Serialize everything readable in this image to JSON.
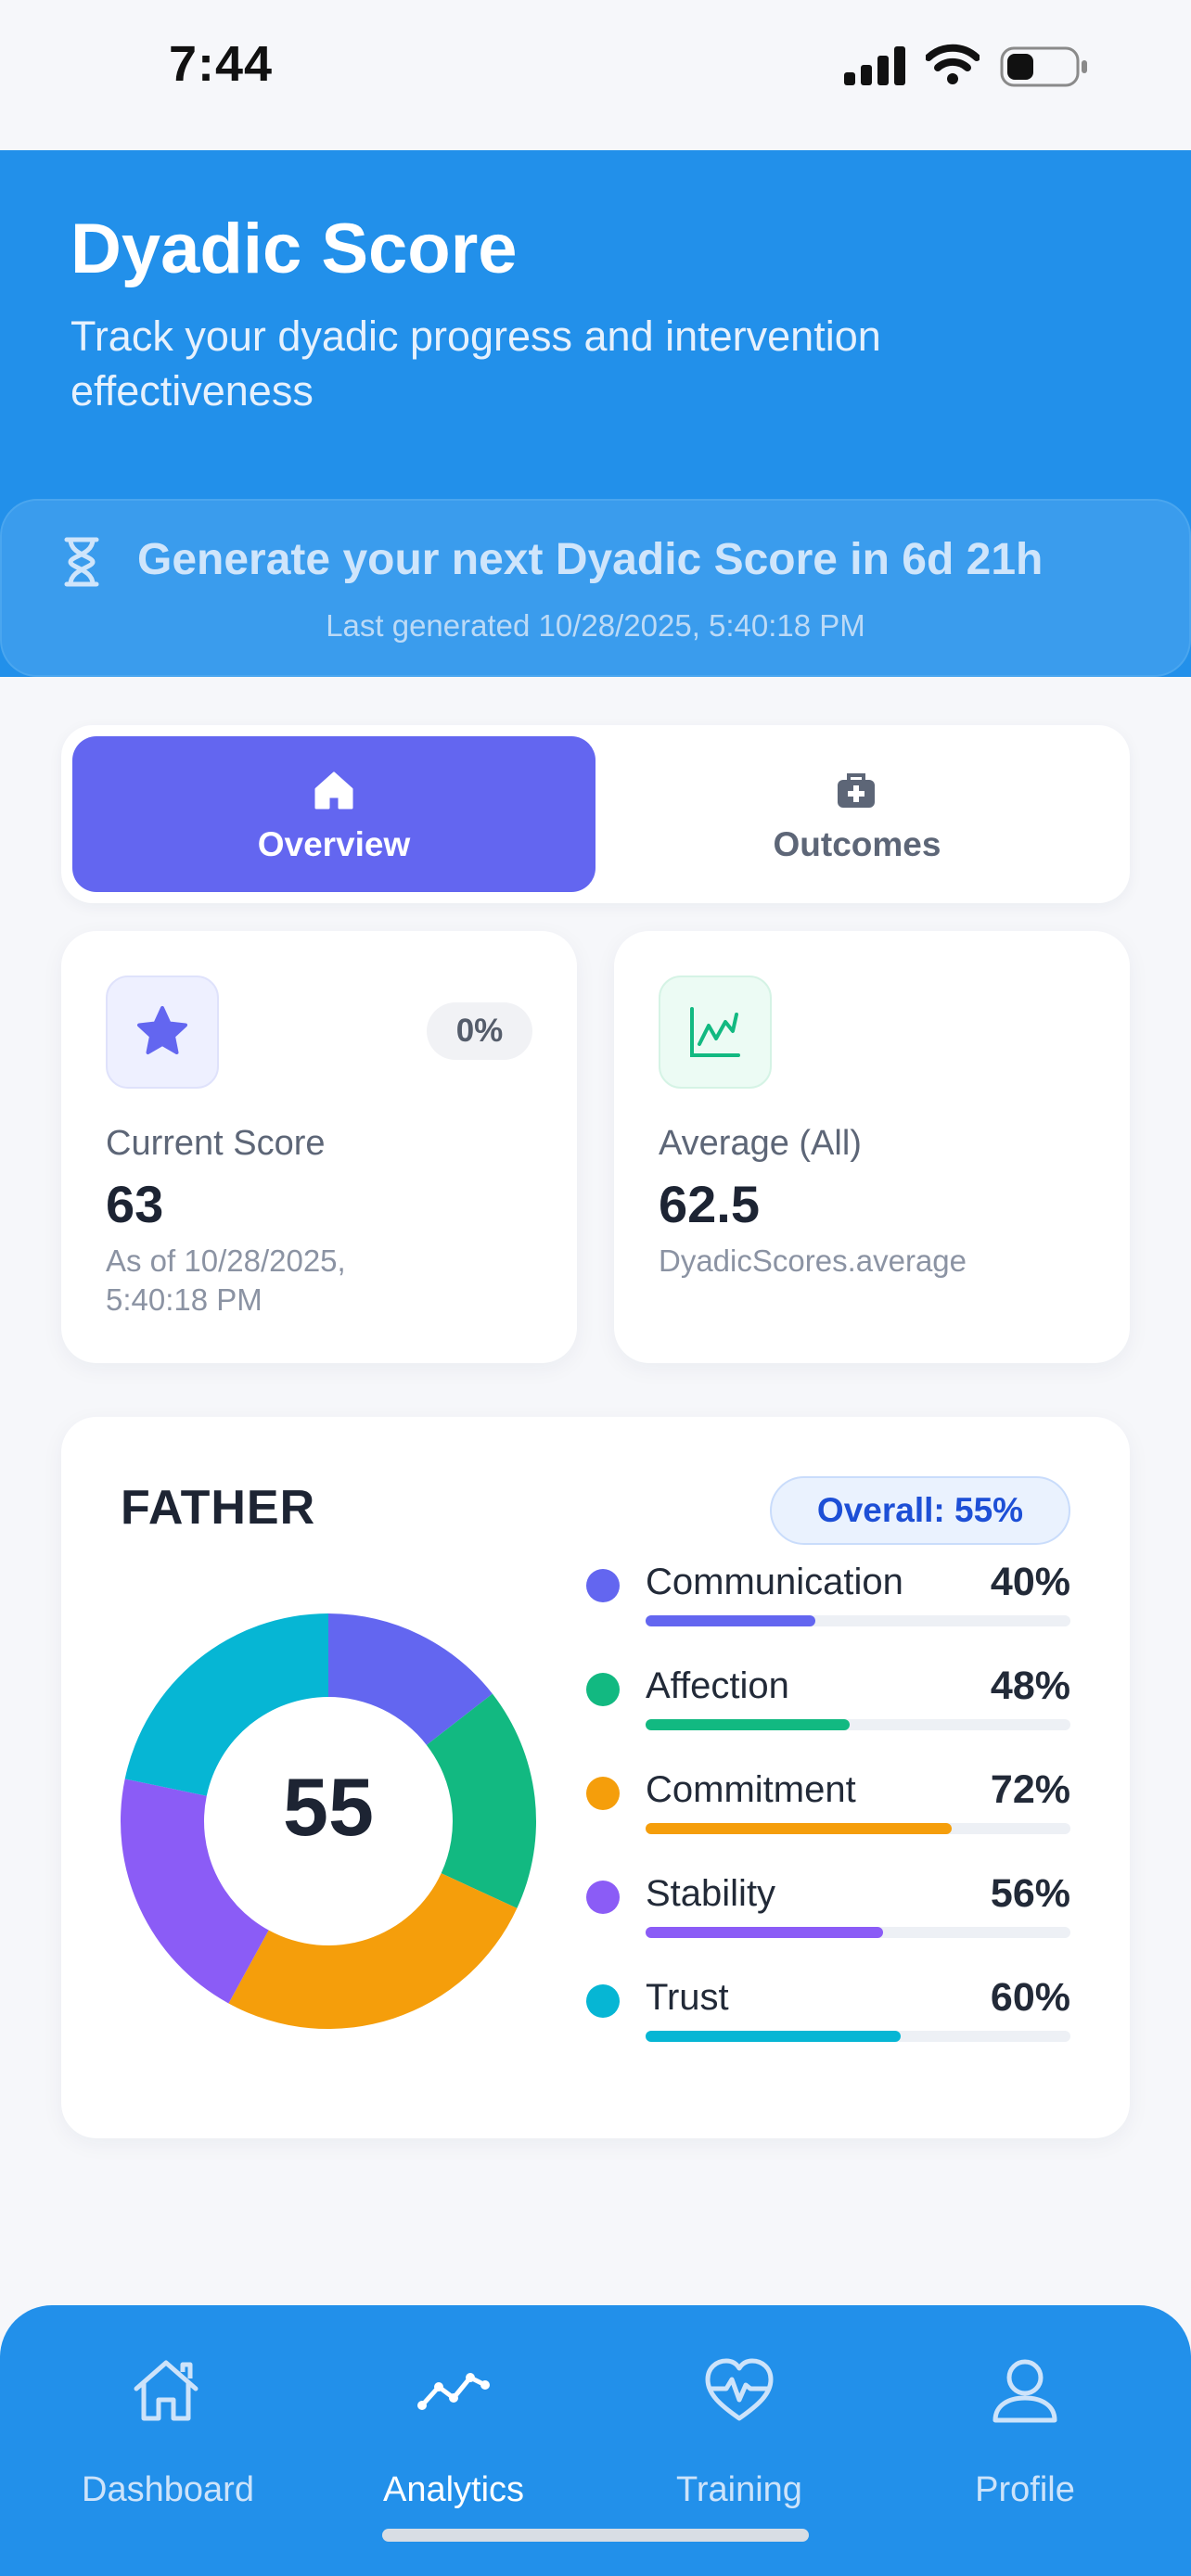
{
  "status_bar": {
    "time": "7:44"
  },
  "header": {
    "title": "Dyadic Score",
    "subtitle": "Track your dyadic progress and intervention effectiveness"
  },
  "banner": {
    "icon": "hourglass-icon",
    "message": "Generate your next Dyadic Score in 6d 21h",
    "last_generated": "Last generated 10/28/2025, 5:40:18 PM"
  },
  "tabs": [
    {
      "label": "Overview",
      "icon": "home-icon",
      "active": true
    },
    {
      "label": "Outcomes",
      "icon": "medical-kit-icon",
      "active": false
    }
  ],
  "stats": {
    "current": {
      "icon": "star-icon",
      "change": "0%",
      "label": "Current Score",
      "value": "63",
      "note": "As of 10/28/2025, 5:40:18 PM"
    },
    "average": {
      "icon": "line-chart-icon",
      "label": "Average (All)",
      "value": "62.5",
      "note": "DyadicScores.average"
    }
  },
  "father": {
    "title": "FATHER",
    "overall": "Overall: 55%",
    "score": "55",
    "metrics": [
      {
        "name": "Communication",
        "pct_label": "40%",
        "value": 40,
        "color": "#6366f0"
      },
      {
        "name": "Affection",
        "pct_label": "48%",
        "value": 48,
        "color": "#12b981"
      },
      {
        "name": "Commitment",
        "pct_label": "72%",
        "value": 72,
        "color": "#f59e0b"
      },
      {
        "name": "Stability",
        "pct_label": "56%",
        "value": 56,
        "color": "#8b5cf6"
      },
      {
        "name": "Trust",
        "pct_label": "60%",
        "value": 60,
        "color": "#06b6d4"
      }
    ]
  },
  "nav": [
    {
      "label": "Dashboard",
      "icon": "home-icon",
      "active": false
    },
    {
      "label": "Analytics",
      "icon": "trend-line-icon",
      "active": true
    },
    {
      "label": "Training",
      "icon": "heartbeat-icon",
      "active": false
    },
    {
      "label": "Profile",
      "icon": "user-icon",
      "active": false
    }
  ],
  "colors": {
    "header_blue": "#2290ea",
    "accent_indigo": "#6366f0",
    "overall_text": "#1d4fd6"
  }
}
